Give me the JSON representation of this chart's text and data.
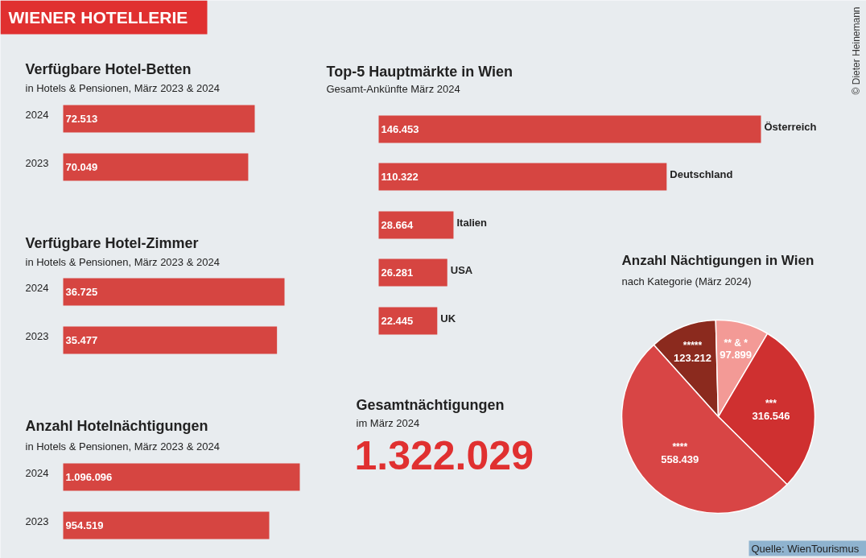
{
  "chart_data": [
    {
      "type": "other",
      "title": "WIENER HOTELLERIE",
      "annotations": [
        "© Dieter Heinemann",
        "Quelle: WienTourismus"
      ]
    },
    {
      "type": "bar",
      "orientation": "horizontal",
      "title": "Verfügbare Hotel-Betten",
      "subtitle": "in Hotels & Pensionen, März 2023 & 2024",
      "categories": [
        "2024",
        "2023"
      ],
      "values": [
        72513,
        70049
      ],
      "value_labels": [
        "72.513",
        "70.049"
      ],
      "color": "#d64541"
    },
    {
      "type": "bar",
      "orientation": "horizontal",
      "title": "Verfügbare Hotel-Zimmer",
      "subtitle": "in Hotels & Pensionen, März 2023 & 2024",
      "categories": [
        "2024",
        "2023"
      ],
      "values": [
        36725,
        35477
      ],
      "value_labels": [
        "36.725",
        "35.477"
      ],
      "color": "#d64541"
    },
    {
      "type": "bar",
      "orientation": "horizontal",
      "title": "Anzahl Hotelnächtigungen",
      "subtitle": "in Hotels & Pensionen, März 2023 & 2024",
      "categories": [
        "2024",
        "2023"
      ],
      "values": [
        1096096,
        954519
      ],
      "value_labels": [
        "1.096.096",
        "954.519"
      ],
      "color": "#d64541"
    },
    {
      "type": "bar",
      "orientation": "horizontal",
      "title": "Top-5 Hauptmärkte in Wien",
      "subtitle": "Gesamt-Ankünfte März 2024",
      "categories": [
        "Österreich",
        "Deutschland",
        "Italien",
        "USA",
        "UK"
      ],
      "values": [
        146453,
        110322,
        28664,
        26281,
        22445
      ],
      "value_labels": [
        "146.453",
        "110.322",
        "28.664",
        "26.281",
        "22.445"
      ],
      "color": "#d64541"
    },
    {
      "type": "other",
      "title": "Gesamtnächtigungen",
      "subtitle": "im März 2024",
      "annotations": [
        "1.322.029"
      ]
    },
    {
      "type": "pie",
      "title": "Anzahl Nächtigungen in Wien",
      "subtitle": "nach Kategorie (März 2024)",
      "categories": [
        "*****",
        "** & *",
        "***",
        "****"
      ],
      "values": [
        123212,
        97899,
        316546,
        558439
      ],
      "value_labels": [
        "123.212",
        "97.899",
        "316.546",
        "558.439"
      ],
      "colors": [
        "#8b2a1e",
        "#f39a96",
        "#cf3030",
        "#d84545"
      ]
    }
  ]
}
